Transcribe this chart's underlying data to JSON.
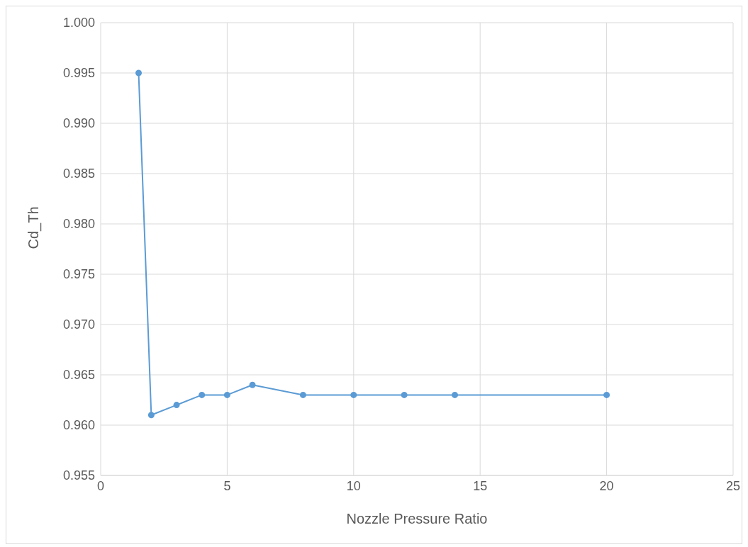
{
  "chart_data": {
    "type": "line",
    "xlabel": "Nozzle Pressure Ratio",
    "ylabel": "Cd_Th",
    "x": [
      1.5,
      2,
      3,
      4,
      5,
      6,
      8,
      10,
      12,
      14,
      20
    ],
    "series": [
      {
        "color": "#5b9bd5",
        "values": [
          0.995,
          0.961,
          0.962,
          0.963,
          0.963,
          0.964,
          0.963,
          0.963,
          0.963,
          0.963,
          0.963
        ]
      }
    ],
    "xlim": [
      0,
      25
    ],
    "xticks": [
      0,
      5,
      10,
      15,
      20,
      25
    ],
    "ylim": [
      0.955,
      1.0
    ],
    "yticks": [
      {
        "value": 0.955,
        "label": "0.955"
      },
      {
        "value": 0.96,
        "label": "0.960"
      },
      {
        "value": 0.965,
        "label": "0.965"
      },
      {
        "value": 0.97,
        "label": "0.970"
      },
      {
        "value": 0.975,
        "label": "0.975"
      },
      {
        "value": 0.98,
        "label": "0.980"
      },
      {
        "value": 0.985,
        "label": "0.985"
      },
      {
        "value": 0.99,
        "label": "0.990"
      },
      {
        "value": 0.995,
        "label": "0.995"
      },
      {
        "value": 1.0,
        "label": "1.000"
      }
    ],
    "grid": true,
    "marker": "circle",
    "line_style": "solid",
    "legend": false
  }
}
